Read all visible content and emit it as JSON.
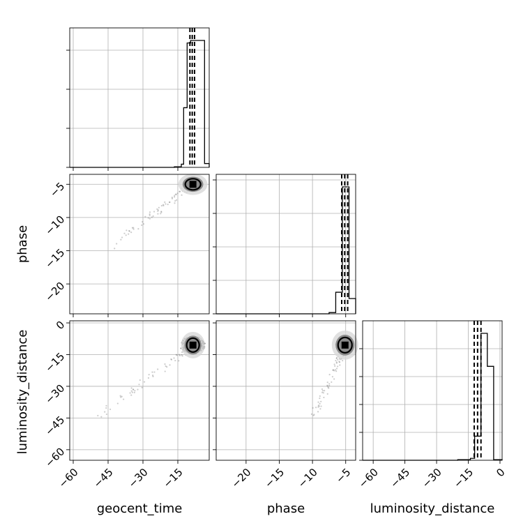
{
  "chart_data": {
    "type": "corner",
    "parameters": [
      "geocent_time",
      "phase",
      "luminosity_distance"
    ],
    "axis_labels": {
      "x": [
        "geocent_time",
        "phase",
        "luminosity_distance"
      ],
      "y": [
        "phase",
        "luminosity_distance"
      ]
    },
    "ranges": {
      "geocent_time": [
        -61.5,
        -1.5
      ],
      "phase": [
        -24.5,
        -3.5
      ],
      "luminosity_distance": [
        -65,
        1
      ]
    },
    "ticks": {
      "geocent_time": [
        -60,
        -45,
        -30,
        -15
      ],
      "phase_x": [
        -20,
        -15,
        -10,
        -5
      ],
      "phase_y": [
        -5,
        -10,
        -15,
        -20
      ],
      "luminosity_distance_y": [
        0,
        -15,
        -30,
        -45,
        -60
      ],
      "luminosity_distance_x": [
        -60,
        -45,
        -30,
        -15,
        0
      ]
    },
    "tick_labels": {
      "geocent_time": [
        "−60",
        "−45",
        "−30",
        "−15"
      ],
      "phase": [
        "−20",
        "−15",
        "−10",
        "−5"
      ],
      "luminosity_distance_x": [
        "−60",
        "−45",
        "−30",
        "−15",
        "0"
      ],
      "luminosity_distance_y": [
        "0",
        "−15",
        "−30",
        "−45",
        "−60"
      ]
    },
    "grid": true,
    "histograms": {
      "geocent_time": {
        "edges": [
          -61.5,
          -16.5,
          -13.5,
          -12.5,
          -11.0,
          -9.5,
          -3.5,
          -1.5
        ],
        "counts": [
          0,
          0.005,
          0.025,
          0.47,
          0.98,
          1.0,
          0.03
        ]
      },
      "phase": {
        "edges": [
          -24.5,
          -7.5,
          -6.5,
          -5.5,
          -4.5,
          -3.5
        ],
        "counts": [
          0,
          0.01,
          0.17,
          1.0,
          0.12
        ]
      },
      "luminosity_distance": {
        "edges": [
          -65,
          -20,
          -14,
          -12,
          -9,
          -6,
          -3,
          1
        ],
        "counts": [
          0,
          0.005,
          0.015,
          0.19,
          1.0,
          0.74,
          0.005
        ]
      }
    },
    "quantiles": {
      "geocent_time": [
        -9.8,
        -8.8,
        -7.8
      ],
      "phase": [
        -5.6,
        -5.15,
        -4.7
      ],
      "luminosity_distance": [
        -12.2,
        -10.6,
        -9.0
      ]
    },
    "scatter_centers": {
      "geocent_time_vs_phase": {
        "x": -8.5,
        "y": -5.0
      },
      "geocent_time_vs_luminosity_distance": {
        "x": -8.5,
        "y": -10.5
      },
      "phase_vs_luminosity_distance": {
        "x": -5.1,
        "y": -10.5
      }
    }
  }
}
